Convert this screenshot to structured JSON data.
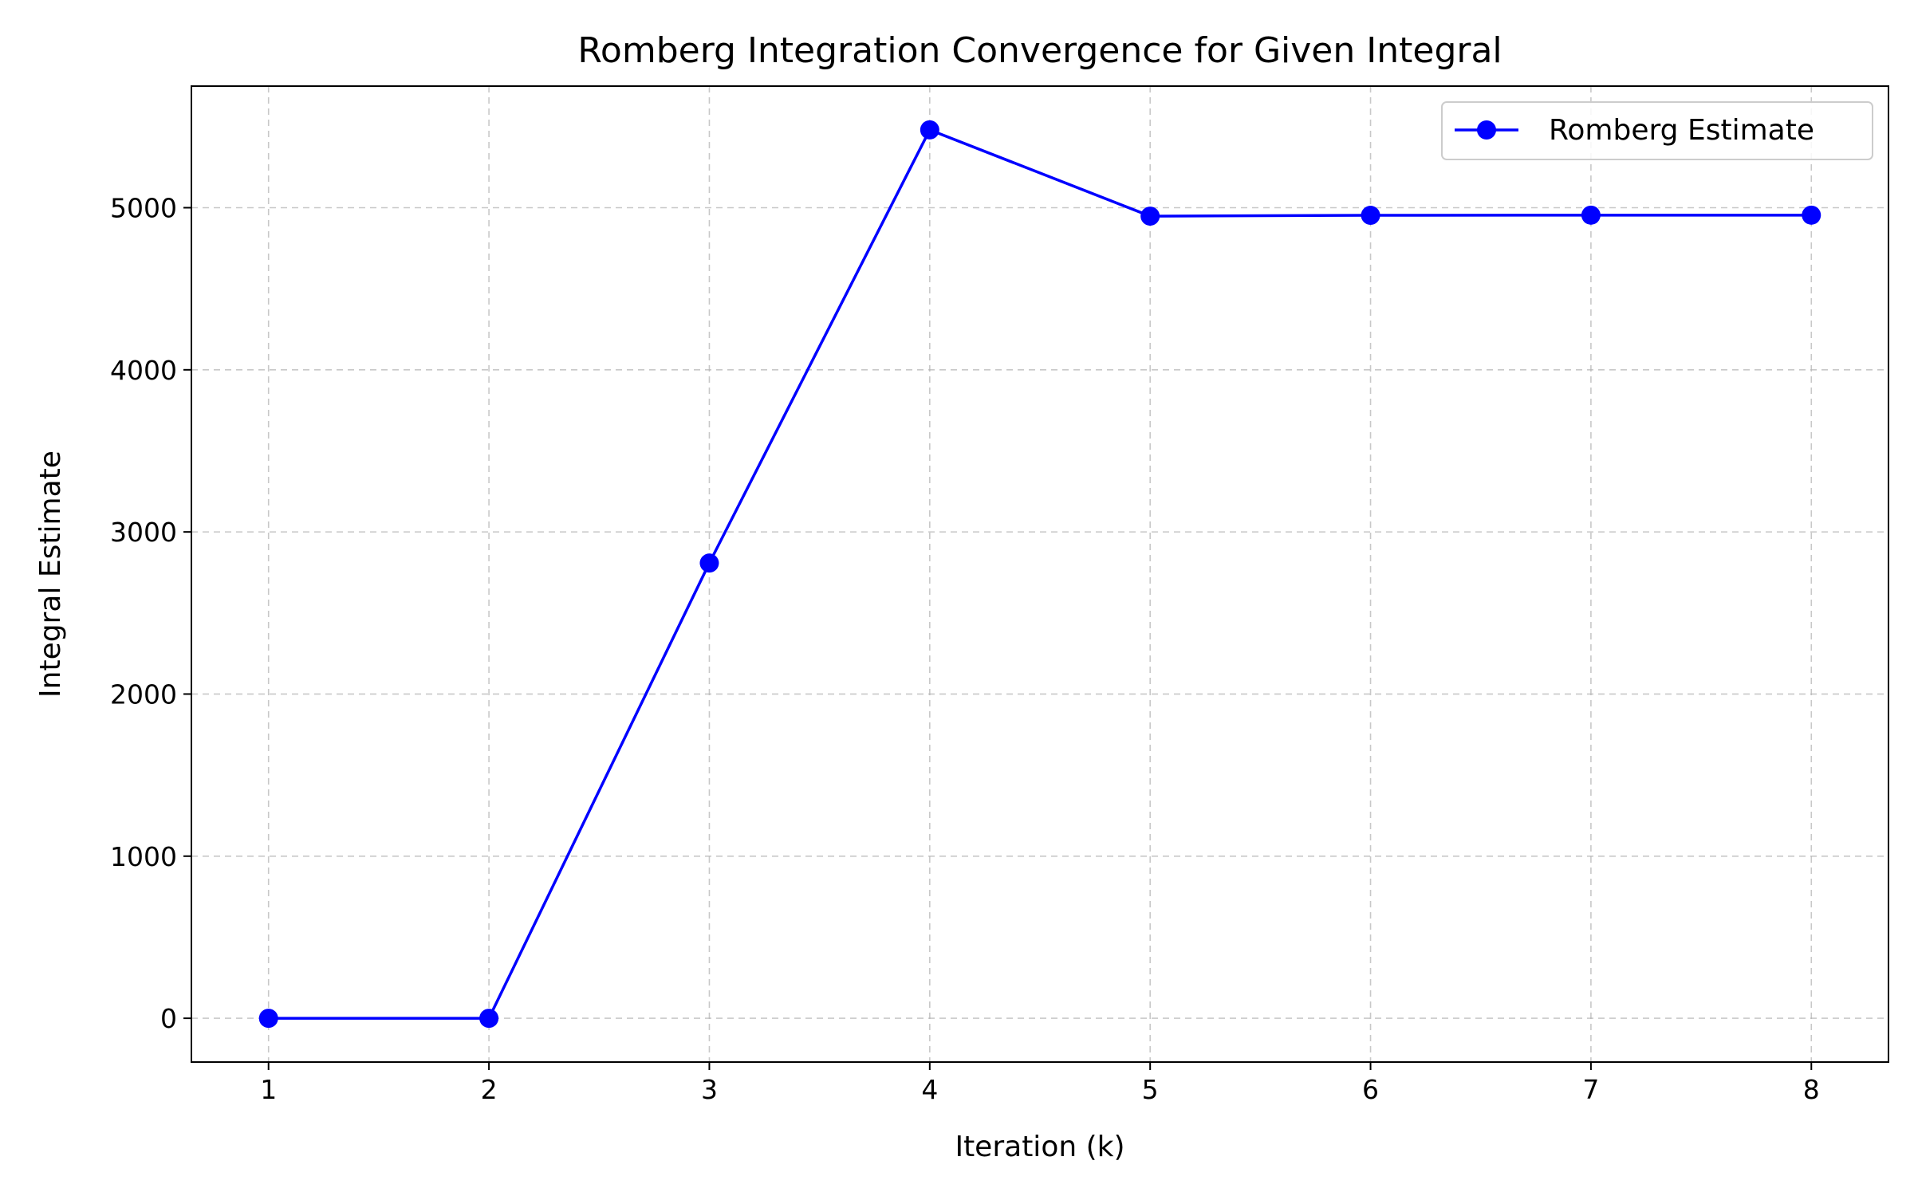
{
  "chart_data": {
    "type": "line",
    "title": "Romberg Integration Convergence for Given Integral",
    "xlabel": "Iteration (k)",
    "ylabel": "Integral Estimate",
    "x": [
      1,
      2,
      3,
      4,
      5,
      6,
      7,
      8
    ],
    "xticks": [
      "1",
      "2",
      "3",
      "4",
      "5",
      "6",
      "7",
      "8"
    ],
    "yticks": [
      "0",
      "1000",
      "2000",
      "3000",
      "4000",
      "5000"
    ],
    "xlim": [
      0.65,
      8.35
    ],
    "ylim": [
      -270,
      5750
    ],
    "grid": true,
    "legend_position": "top-right",
    "series": [
      {
        "name": "Romberg Estimate",
        "color": "#0000ff",
        "marker": "circle",
        "values": [
          0,
          0,
          2808,
          5480,
          4948,
          4953,
          4954,
          4954
        ]
      }
    ]
  }
}
